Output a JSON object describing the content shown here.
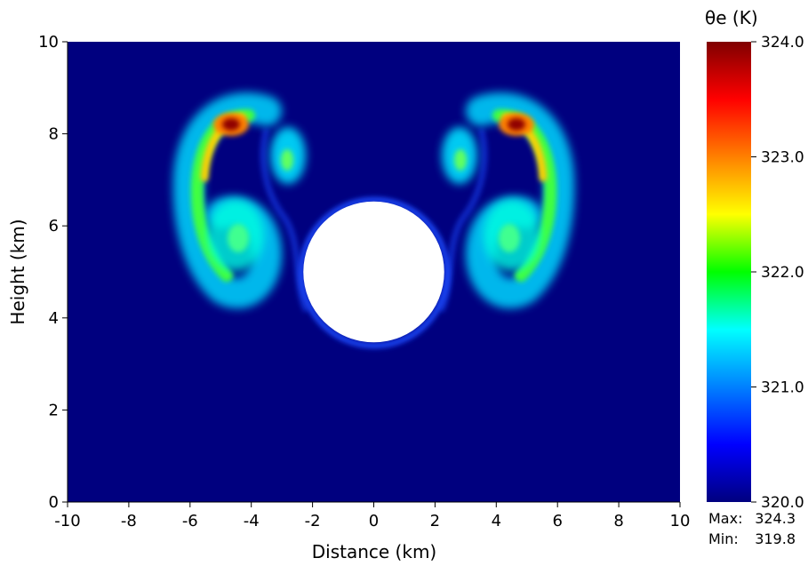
{
  "chart_data": {
    "type": "heatmap",
    "title": "",
    "xlabel": "Distance (km)",
    "ylabel": "Height (km)",
    "xlim": [
      -10,
      10
    ],
    "ylim": [
      0,
      10
    ],
    "x_ticks": [
      -10,
      -8,
      -6,
      -4,
      -2,
      0,
      2,
      4,
      6,
      8,
      10
    ],
    "y_ticks": [
      0,
      2,
      4,
      6,
      8,
      10
    ],
    "x_tick_labels": [
      "-10",
      "-8",
      "-6",
      "-4",
      "-2",
      "0",
      "2",
      "4",
      "6",
      "8",
      "10"
    ],
    "y_tick_labels": [
      "0",
      "2",
      "4",
      "6",
      "8",
      "10"
    ],
    "background_value": 320.0,
    "obstacle": {
      "shape": "circle",
      "center_x": 0,
      "center_y": 5,
      "radius": 2.3,
      "color": "#ffffff"
    },
    "features": [
      {
        "name": "left-outer-arc-peak",
        "x": -4.8,
        "y": 8.2,
        "value": 324.0
      },
      {
        "name": "left-outer-arc",
        "x": -5.7,
        "y": 6.5,
        "value": 322.3
      },
      {
        "name": "left-lower-vortex",
        "x": -4.5,
        "y": 5.8,
        "value": 321.2
      },
      {
        "name": "left-inner-vortex",
        "x": -2.8,
        "y": 7.5,
        "value": 321.3
      },
      {
        "name": "right-outer-arc-peak",
        "x": 4.8,
        "y": 8.2,
        "value": 324.0
      },
      {
        "name": "right-outer-arc",
        "x": 5.7,
        "y": 6.5,
        "value": 322.3
      },
      {
        "name": "right-lower-vortex",
        "x": 4.5,
        "y": 5.8,
        "value": 321.2
      },
      {
        "name": "right-inner-vortex",
        "x": 2.8,
        "y": 7.5,
        "value": 321.3
      }
    ],
    "colorbar": {
      "title": "θe (K)",
      "min": 320.0,
      "max": 324.0,
      "ticks": [
        "320.0",
        "321.0",
        "322.0",
        "323.0",
        "324.0"
      ],
      "tick_values": [
        320.0,
        321.0,
        322.0,
        323.0,
        324.0
      ],
      "colors": [
        "#00007f",
        "#0000ff",
        "#0080ff",
        "#00ffff",
        "#00ff00",
        "#ffff00",
        "#ff8000",
        "#ff0000",
        "#800000"
      ]
    },
    "stats": {
      "max_label": "Max:",
      "max_value": "324.3",
      "min_label": "Min:",
      "min_value": "319.8"
    }
  }
}
